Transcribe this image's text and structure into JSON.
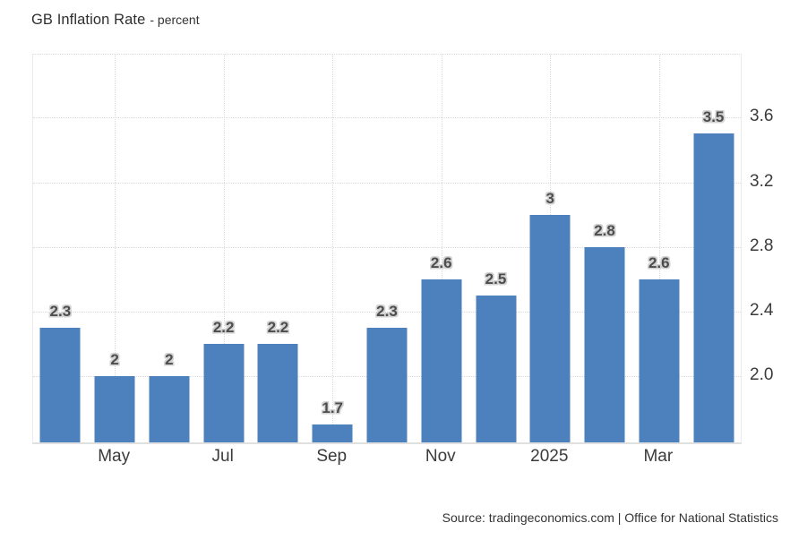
{
  "header": {
    "title": "GB Inflation Rate",
    "subtitle": "- percent"
  },
  "footer": {
    "source": "Source: tradingeconomics.com | Office for National Statistics"
  },
  "colors": {
    "bar": "#4d81bd",
    "grid": "#d9d9d9",
    "axis_text": "#3b3b3b",
    "bar_label_text": "#4d4d4d",
    "bar_label_outline": "#d2d2d2"
  },
  "chart_data": {
    "type": "bar",
    "title": "GB Inflation Rate",
    "subtitle": "- percent",
    "ylabel": "percent",
    "values": [
      2.3,
      2,
      2,
      2.2,
      2.2,
      1.7,
      2.3,
      2.6,
      2.5,
      3,
      2.8,
      2.6,
      3.5
    ],
    "bar_labels": [
      "2.3",
      "2",
      "2",
      "2.2",
      "2.2",
      "1.7",
      "2.3",
      "2.6",
      "2.5",
      "3",
      "2.8",
      "2.6",
      "3.5"
    ],
    "x_ticks": [
      {
        "label": "May",
        "bar_index": 1
      },
      {
        "label": "Jul",
        "bar_index": 3
      },
      {
        "label": "Sep",
        "bar_index": 5
      },
      {
        "label": "Nov",
        "bar_index": 7
      },
      {
        "label": "2025",
        "bar_index": 9
      },
      {
        "label": "Mar",
        "bar_index": 11
      }
    ],
    "y_ticks": [
      2.0,
      2.4,
      2.8,
      3.2,
      3.6
    ],
    "y_tick_labels": [
      "2.0",
      "2.4",
      "2.8",
      "3.2",
      "3.6"
    ],
    "ylim": [
      1.59,
      3.99
    ],
    "y_axis_position": "right",
    "grid": "dotted",
    "legend": "none",
    "bar_color": "#4d81bd"
  }
}
